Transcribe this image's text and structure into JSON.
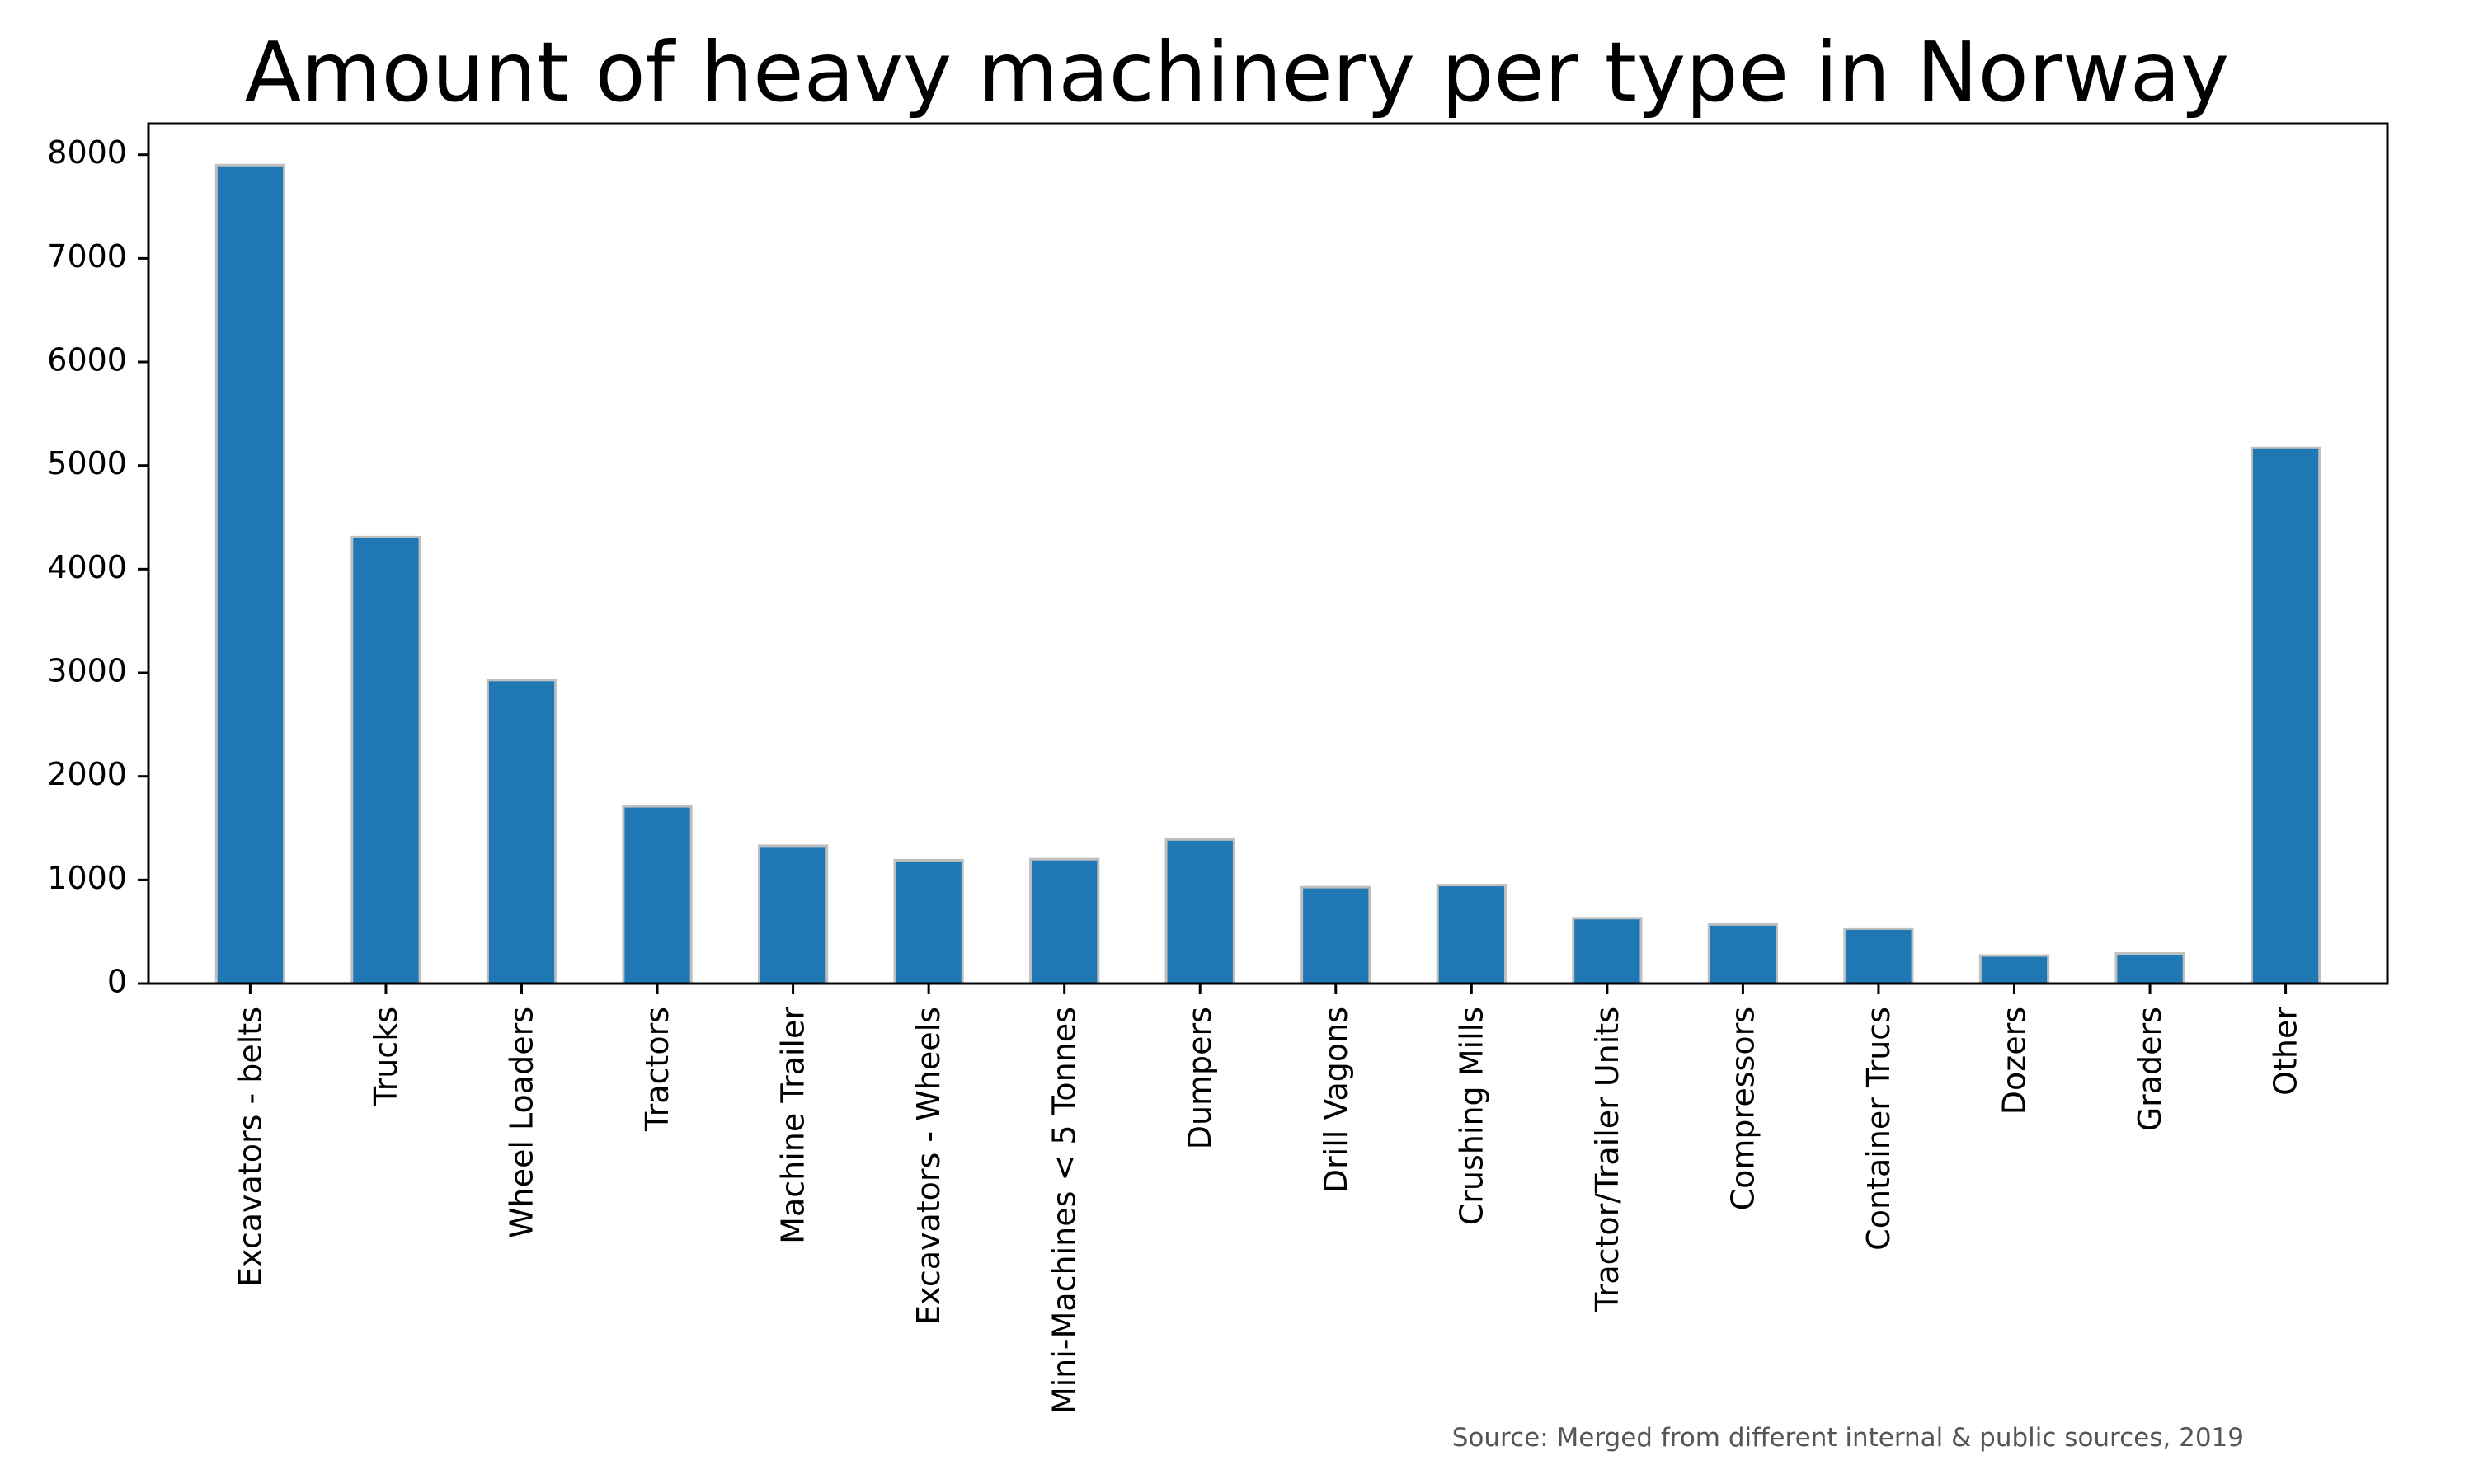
{
  "chart_data": {
    "type": "bar",
    "title": "Amount of heavy machinery per type in Norway",
    "xlabel": "",
    "ylabel": "",
    "categories": [
      "Excavators - belts",
      "Trucks",
      "Wheel Loaders",
      "Tractors",
      "Machine Trailer",
      "Excavators - Wheels",
      "Mini-Machines < 5 Tonnes",
      "Dumpers",
      "Drill Vagons",
      "Crushing Mills",
      "Tractor/Trailer Units",
      "Compressors",
      "Container Trucs",
      "Dozers",
      "Graders",
      "Other"
    ],
    "values": [
      7900,
      4310,
      2930,
      1710,
      1330,
      1190,
      1200,
      1390,
      930,
      950,
      630,
      570,
      530,
      270,
      290,
      5170
    ],
    "ylim": [
      0,
      8300
    ],
    "yticks": [
      0,
      1000,
      2000,
      3000,
      4000,
      5000,
      6000,
      7000,
      8000
    ],
    "ytick_labels": [
      "0",
      "1000",
      "2000",
      "3000",
      "4000",
      "5000",
      "6000",
      "7000",
      "8000"
    ],
    "grid": false,
    "legend": "none",
    "bar_color": "#1f77b4",
    "bar_edge_color": "#bfbfbf",
    "annotation": "Source: Merged from different internal & public sources, 2019"
  }
}
